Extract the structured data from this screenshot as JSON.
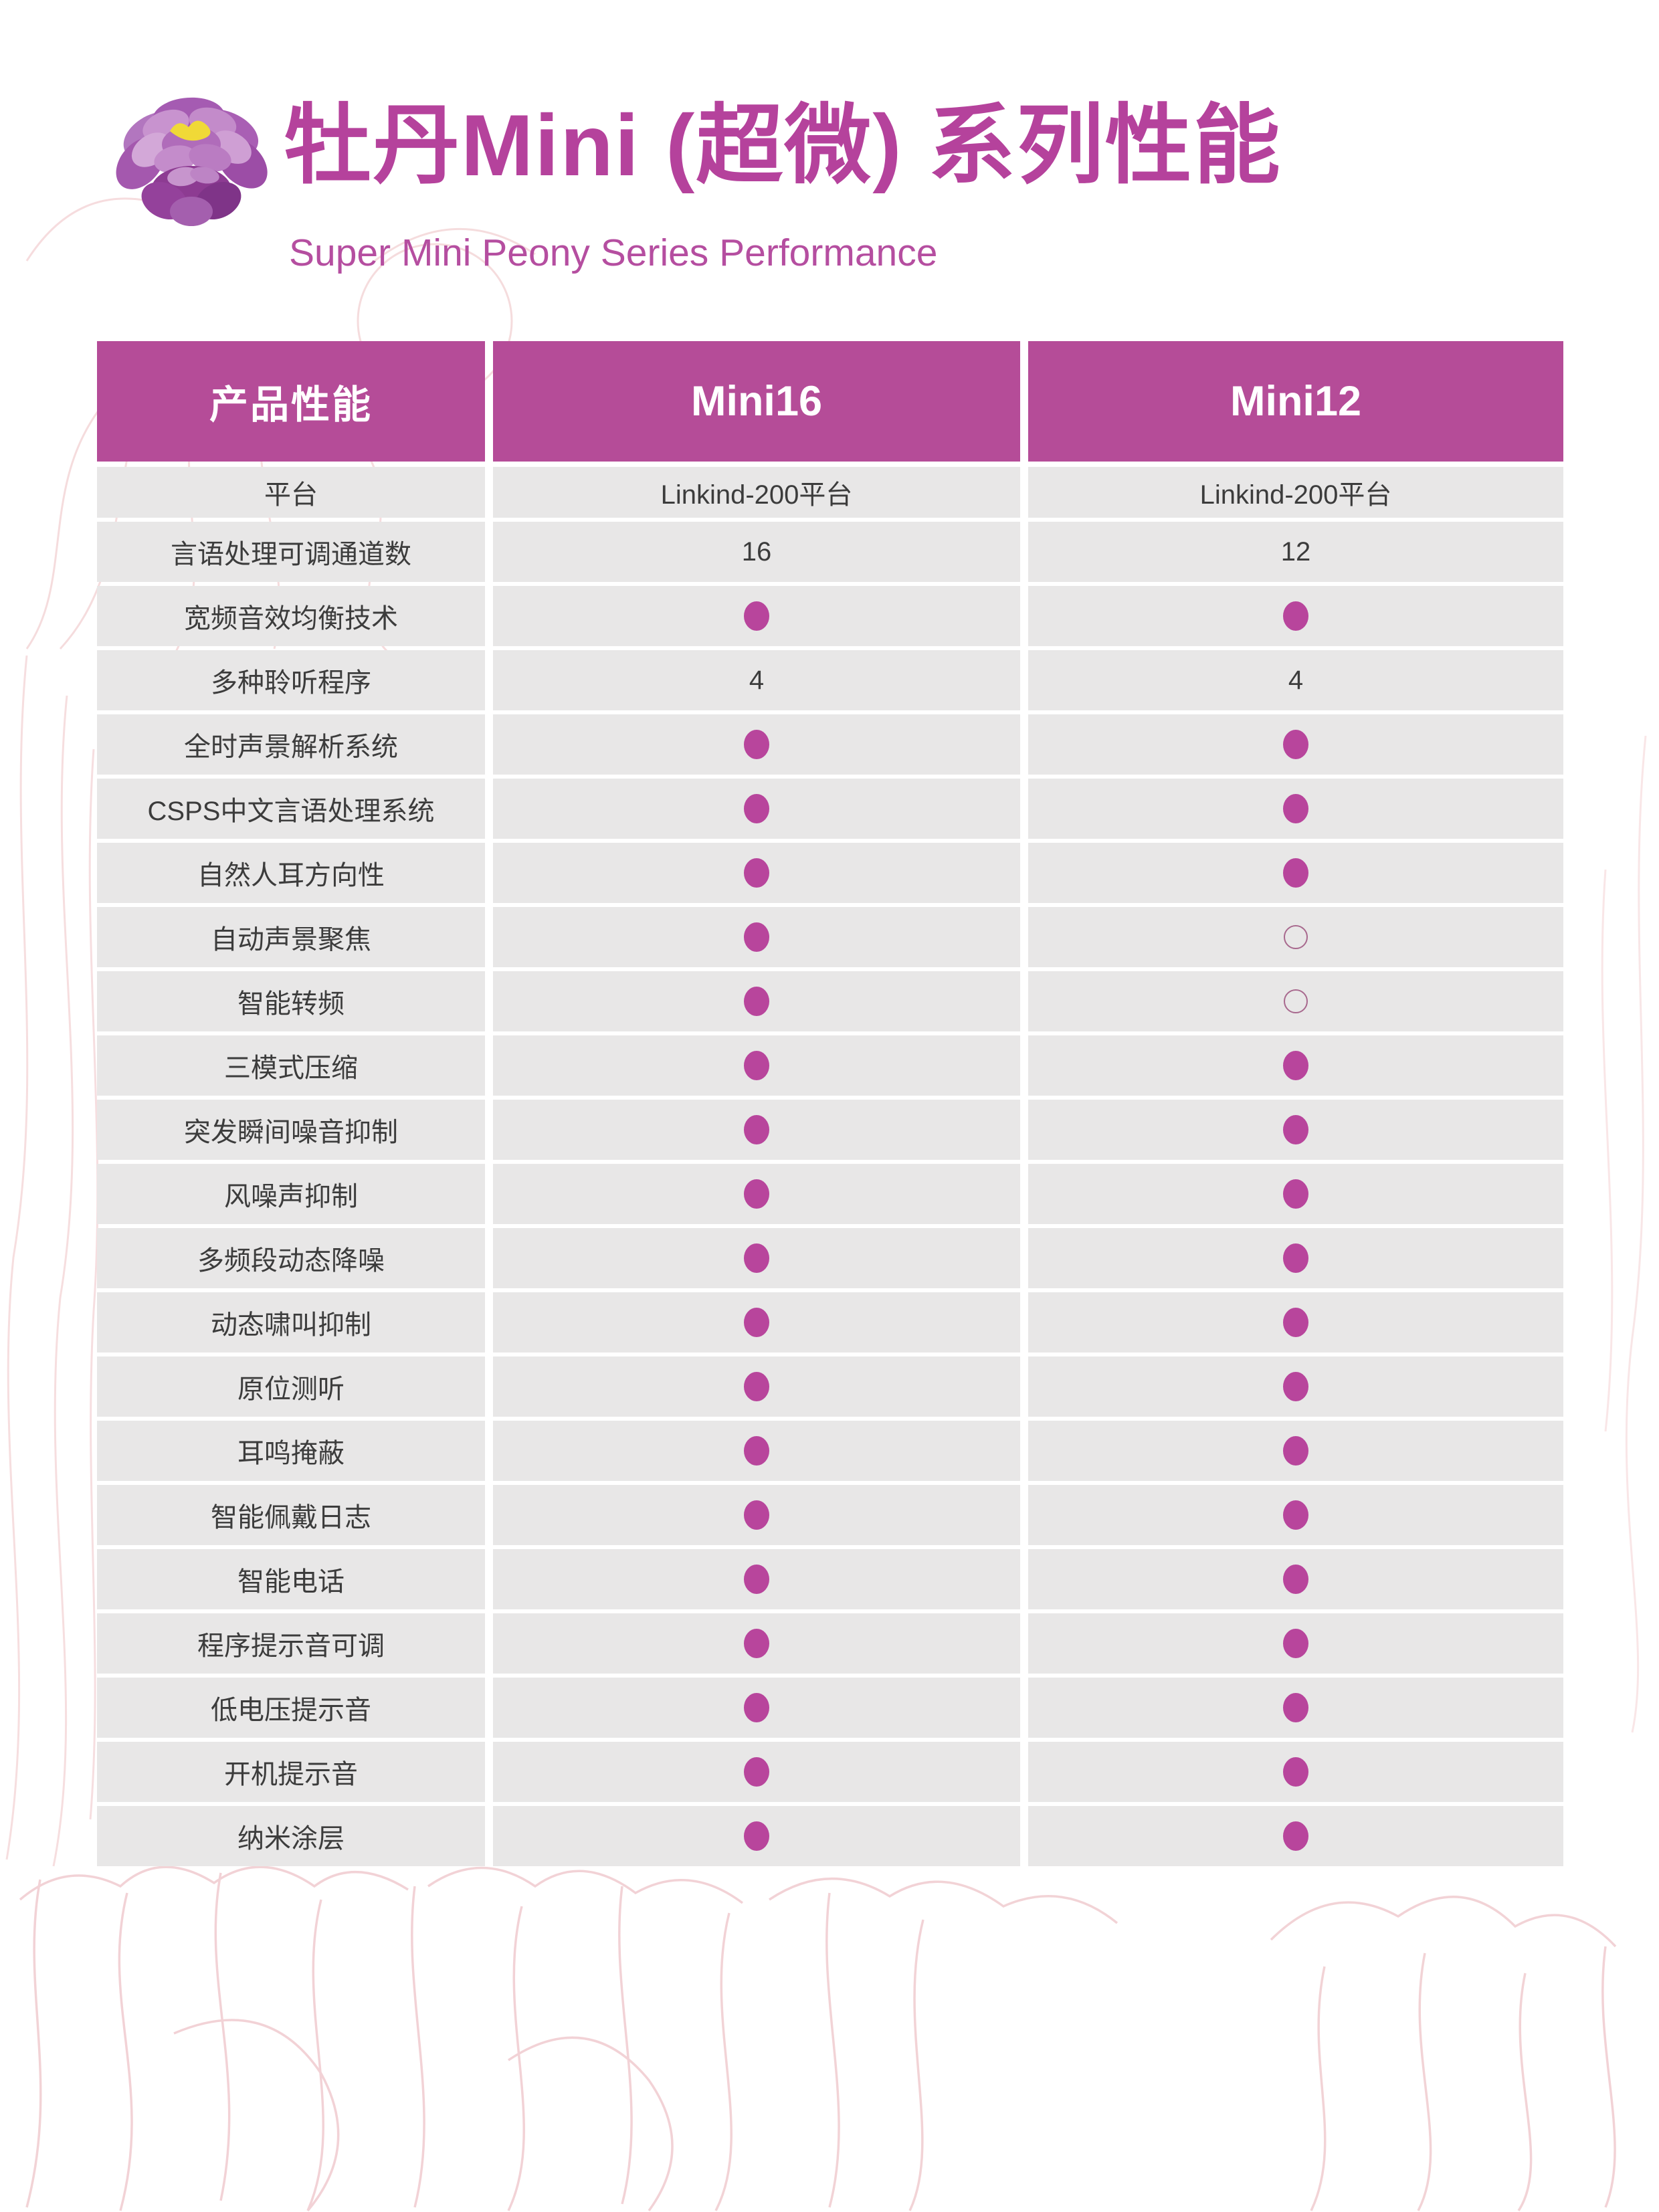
{
  "header": {
    "title": "牡丹Mini (超微) 系列性能",
    "subtitle": "Super Mini Peony Series Performance",
    "logo": "peony-flower-illustration"
  },
  "colors": {
    "accent_magenta": "#b5429c",
    "table_header_bg": "#b54c98",
    "row_bg": "#e8e7e7",
    "label_text": "#3c3c3c",
    "dot_filled": "#b8459c",
    "dot_hollow_stroke": "#a8698e",
    "decor_pink": "#f4d6d8",
    "flower_yellow": "#f0d937"
  },
  "table": {
    "columns": [
      {
        "label": "产品性能"
      },
      {
        "label": "Mini16"
      },
      {
        "label": "Mini12"
      }
    ],
    "legend": {
      "filled_marker": "●",
      "hollow_marker": "○"
    },
    "rows": [
      {
        "feature": "平台",
        "mini16": "Linkind-200平台",
        "mini12": "Linkind-200平台"
      },
      {
        "feature": "言语处理可调通道数",
        "mini16": "16",
        "mini12": "12"
      },
      {
        "feature": "宽频音效均衡技术",
        "mini16": "●",
        "mini12": "●"
      },
      {
        "feature": "多种聆听程序",
        "mini16": "4",
        "mini12": "4"
      },
      {
        "feature": "全时声景解析系统",
        "mini16": "●",
        "mini12": "●"
      },
      {
        "feature": "CSPS中文言语处理系统",
        "mini16": "●",
        "mini12": "●"
      },
      {
        "feature": "自然人耳方向性",
        "mini16": "●",
        "mini12": "●"
      },
      {
        "feature": "自动声景聚焦",
        "mini16": "●",
        "mini12": "○"
      },
      {
        "feature": "智能转频",
        "mini16": "●",
        "mini12": "○"
      },
      {
        "feature": "三模式压缩",
        "mini16": "●",
        "mini12": "●"
      },
      {
        "feature": "突发瞬间噪音抑制",
        "mini16": "●",
        "mini12": "●"
      },
      {
        "feature": "风噪声抑制",
        "mini16": "●",
        "mini12": "●"
      },
      {
        "feature": "多频段动态降噪",
        "mini16": "●",
        "mini12": "●"
      },
      {
        "feature": "动态啸叫抑制",
        "mini16": "●",
        "mini12": "●"
      },
      {
        "feature": "原位测听",
        "mini16": "●",
        "mini12": "●"
      },
      {
        "feature": "耳鸣掩蔽",
        "mini16": "●",
        "mini12": "●"
      },
      {
        "feature": "智能佩戴日志",
        "mini16": "●",
        "mini12": "●"
      },
      {
        "feature": "智能电话",
        "mini16": "●",
        "mini12": "●"
      },
      {
        "feature": "程序提示音可调",
        "mini16": "●",
        "mini12": "●"
      },
      {
        "feature": "低电压提示音",
        "mini16": "●",
        "mini12": "●"
      },
      {
        "feature": "开机提示音",
        "mini16": "●",
        "mini12": "●"
      },
      {
        "feature": "纳米涂层",
        "mini16": "●",
        "mini12": "●"
      }
    ]
  }
}
